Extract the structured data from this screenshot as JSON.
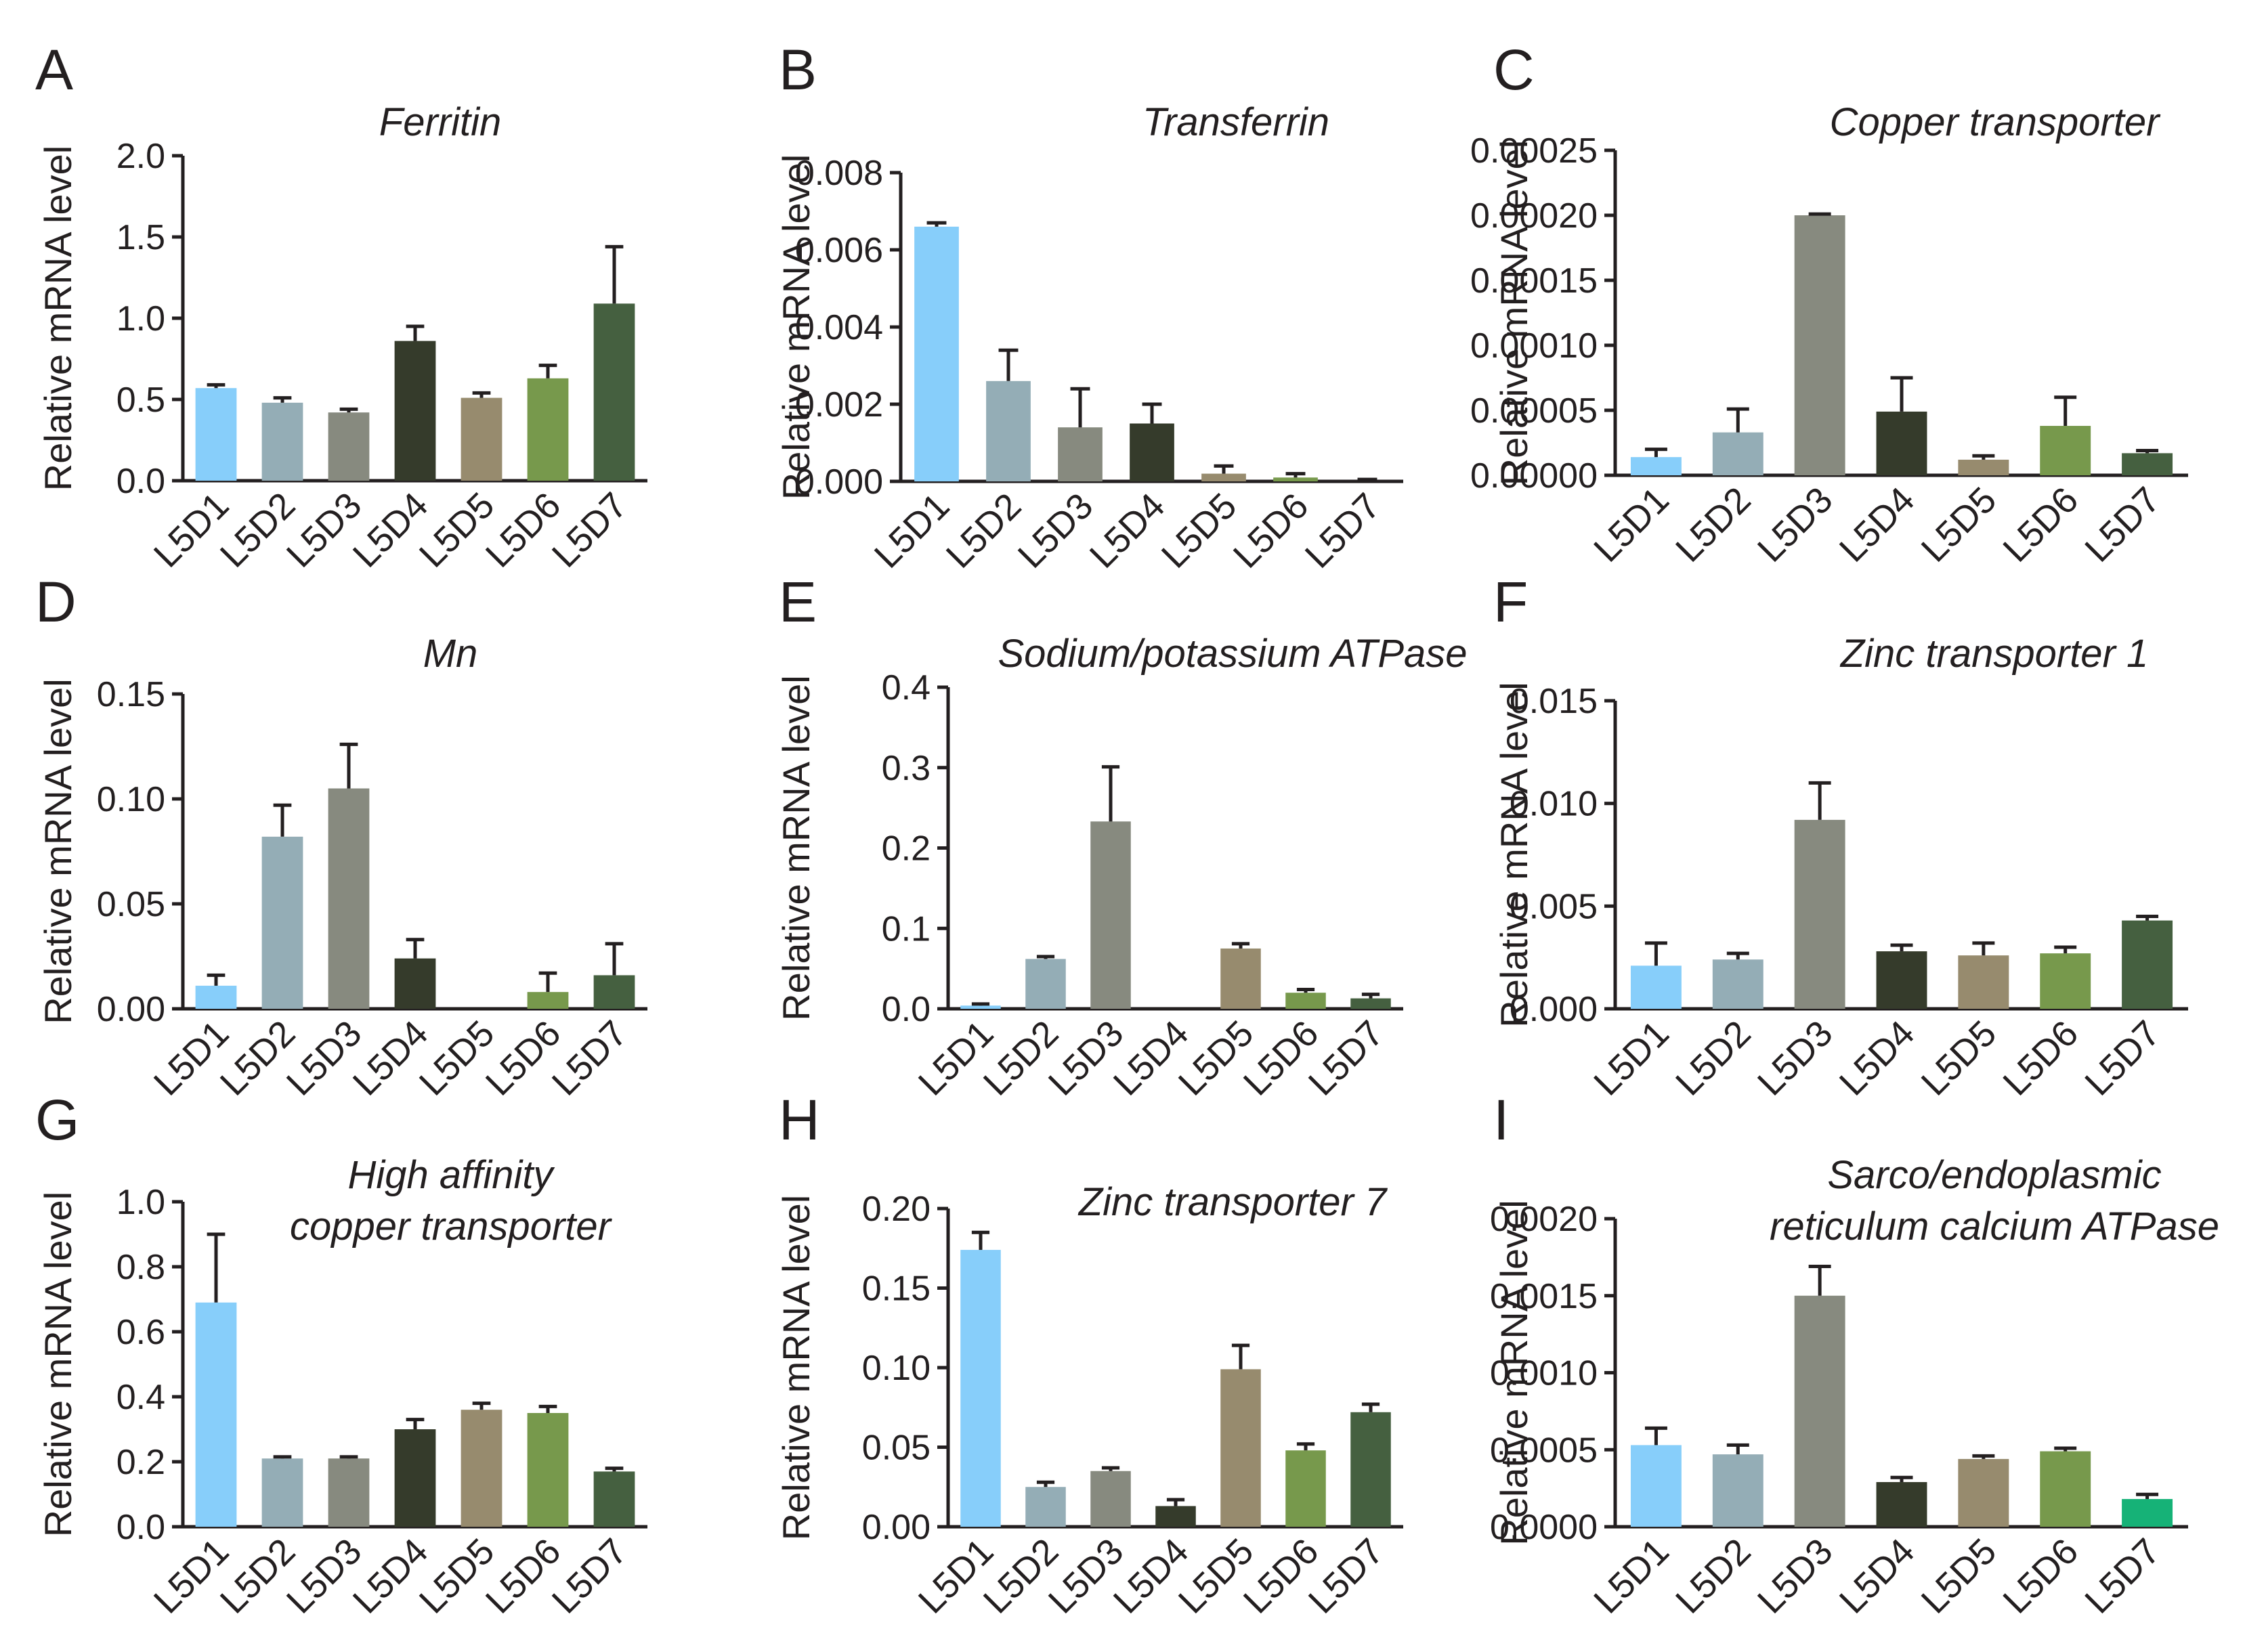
{
  "colors": {
    "L5D1": "#87cefa",
    "L5D2": "#94adb6",
    "L5D3": "#878a7f",
    "L5D4": "#353b2b",
    "L5D5": "#978b6e",
    "L5D6": "#77994c",
    "L5D7": "#456040",
    "L5D7_alt": "#16b277"
  },
  "chart_data": [
    {
      "id": "A",
      "type": "bar",
      "title": [
        "Ferritin"
      ],
      "ylabel": "Relative mRNA level",
      "ylim": [
        0,
        2.0
      ],
      "yticks": [
        "0.0",
        "0.5",
        "1.0",
        "1.5",
        "2.0"
      ],
      "categories": [
        "L5D1",
        "L5D2",
        "L5D3",
        "L5D4",
        "L5D5",
        "L5D6",
        "L5D7"
      ],
      "values": [
        0.57,
        0.48,
        0.42,
        0.86,
        0.51,
        0.63,
        1.09
      ],
      "errors": [
        0.02,
        0.03,
        0.02,
        0.09,
        0.03,
        0.08,
        0.35
      ]
    },
    {
      "id": "B",
      "type": "bar",
      "title": [
        "Transferrin"
      ],
      "ylabel": "Relative mRNA level",
      "ylim": [
        0,
        0.008
      ],
      "yticks": [
        "0.000",
        "0.002",
        "0.004",
        "0.006",
        "0.008"
      ],
      "categories": [
        "L5D1",
        "L5D2",
        "L5D3",
        "L5D4",
        "L5D5",
        "L5D6",
        "L5D7"
      ],
      "values": [
        0.0066,
        0.0026,
        0.0014,
        0.0015,
        0.0002,
        0.0001,
        0.0
      ],
      "errors": [
        0.0001,
        0.0008,
        0.001,
        0.0005,
        0.0002,
        0.0001,
        5e-05
      ]
    },
    {
      "id": "C",
      "type": "bar",
      "title": [
        "Copper transporter"
      ],
      "ylabel": "Relative mRNA level",
      "ylim": [
        0,
        0.00025
      ],
      "yticks": [
        "0.00000",
        "0.00005",
        "0.00010",
        "0.00015",
        "0.00020",
        "0.00025"
      ],
      "categories": [
        "L5D1",
        "L5D2",
        "L5D3",
        "L5D4",
        "L5D5",
        "L5D6",
        "L5D7"
      ],
      "values": [
        1.4e-05,
        3.3e-05,
        0.0002,
        4.9e-05,
        1.2e-05,
        3.8e-05,
        1.7e-05
      ],
      "errors": [
        6e-06,
        1.8e-05,
        1e-06,
        2.6e-05,
        3e-06,
        2.2e-05,
        2e-06
      ]
    },
    {
      "id": "D",
      "type": "bar",
      "title": [
        "Mn"
      ],
      "ylabel": "Relative mRNA level",
      "ylim": [
        0,
        0.15
      ],
      "yticks": [
        "0.00",
        "0.05",
        "0.10",
        "0.15"
      ],
      "categories": [
        "L5D1",
        "L5D2",
        "L5D3",
        "L5D4",
        "L5D5",
        "L5D6",
        "L5D7"
      ],
      "values": [
        0.011,
        0.082,
        0.105,
        0.024,
        0.0,
        0.008,
        0.016
      ],
      "errors": [
        0.005,
        0.015,
        0.021,
        0.009,
        0.0,
        0.009,
        0.015
      ]
    },
    {
      "id": "E",
      "type": "bar",
      "title": [
        "Sodium/potassium ATPase"
      ],
      "ylabel": "Relative mRNA level",
      "ylim": [
        0,
        0.4
      ],
      "yticks": [
        "0.0",
        "0.1",
        "0.2",
        "0.3",
        "0.4"
      ],
      "categories": [
        "L5D1",
        "L5D2",
        "L5D3",
        "L5D4",
        "L5D5",
        "L5D6",
        "L5D7"
      ],
      "values": [
        0.004,
        0.062,
        0.233,
        0.0,
        0.075,
        0.02,
        0.013
      ],
      "errors": [
        0.002,
        0.003,
        0.068,
        0.0,
        0.006,
        0.004,
        0.005
      ]
    },
    {
      "id": "F",
      "type": "bar",
      "title": [
        "Zinc transporter 1"
      ],
      "ylabel": "Relative mRNA level",
      "ylim": [
        0,
        0.015
      ],
      "yticks": [
        "0.000",
        "0.005",
        "0.010",
        "0.015"
      ],
      "categories": [
        "L5D1",
        "L5D2",
        "L5D3",
        "L5D4",
        "L5D5",
        "L5D6",
        "L5D7"
      ],
      "values": [
        0.0021,
        0.0024,
        0.0092,
        0.0028,
        0.0026,
        0.0027,
        0.0043
      ],
      "errors": [
        0.0011,
        0.0003,
        0.0018,
        0.0003,
        0.0006,
        0.0003,
        0.0002
      ]
    },
    {
      "id": "G",
      "type": "bar",
      "title": [
        "High affinity",
        "copper transporter"
      ],
      "ylabel": "Relative mRNA level",
      "ylim": [
        0,
        1.0
      ],
      "yticks": [
        "0.0",
        "0.2",
        "0.4",
        "0.6",
        "0.8",
        "1.0"
      ],
      "categories": [
        "L5D1",
        "L5D2",
        "L5D3",
        "L5D4",
        "L5D5",
        "L5D6",
        "L5D7"
      ],
      "values": [
        0.69,
        0.21,
        0.21,
        0.3,
        0.36,
        0.35,
        0.17
      ],
      "errors": [
        0.21,
        0.005,
        0.005,
        0.03,
        0.02,
        0.02,
        0.01
      ]
    },
    {
      "id": "H",
      "type": "bar",
      "title": [
        "Zinc transporter 7"
      ],
      "ylabel": "Relative mRNA level",
      "ylim": [
        0,
        0.2
      ],
      "yticks": [
        "0.00",
        "0.05",
        "0.10",
        "0.15",
        "0.20"
      ],
      "categories": [
        "L5D1",
        "L5D2",
        "L5D3",
        "L5D4",
        "L5D5",
        "L5D6",
        "L5D7"
      ],
      "values": [
        0.174,
        0.025,
        0.035,
        0.013,
        0.099,
        0.048,
        0.072
      ],
      "errors": [
        0.011,
        0.003,
        0.002,
        0.004,
        0.015,
        0.004,
        0.005
      ]
    },
    {
      "id": "I",
      "type": "bar",
      "title": [
        "Sarco/endoplasmic",
        "reticulum calcium ATPase"
      ],
      "ylabel": "Relative mRNA level",
      "ylim": [
        0,
        0.002
      ],
      "yticks": [
        "0.0000",
        "0.0005",
        "0.0010",
        "0.0015",
        "0.0020"
      ],
      "categories": [
        "L5D1",
        "L5D2",
        "L5D3",
        "L5D4",
        "L5D5",
        "L5D6",
        "L5D7"
      ],
      "values": [
        0.00053,
        0.00047,
        0.0015,
        0.00029,
        0.00044,
        0.00049,
        0.00018
      ],
      "errors": [
        0.00011,
        6e-05,
        0.00019,
        3e-05,
        2e-05,
        2e-05,
        3e-05
      ],
      "last_bar_color": "L5D7_alt"
    }
  ]
}
